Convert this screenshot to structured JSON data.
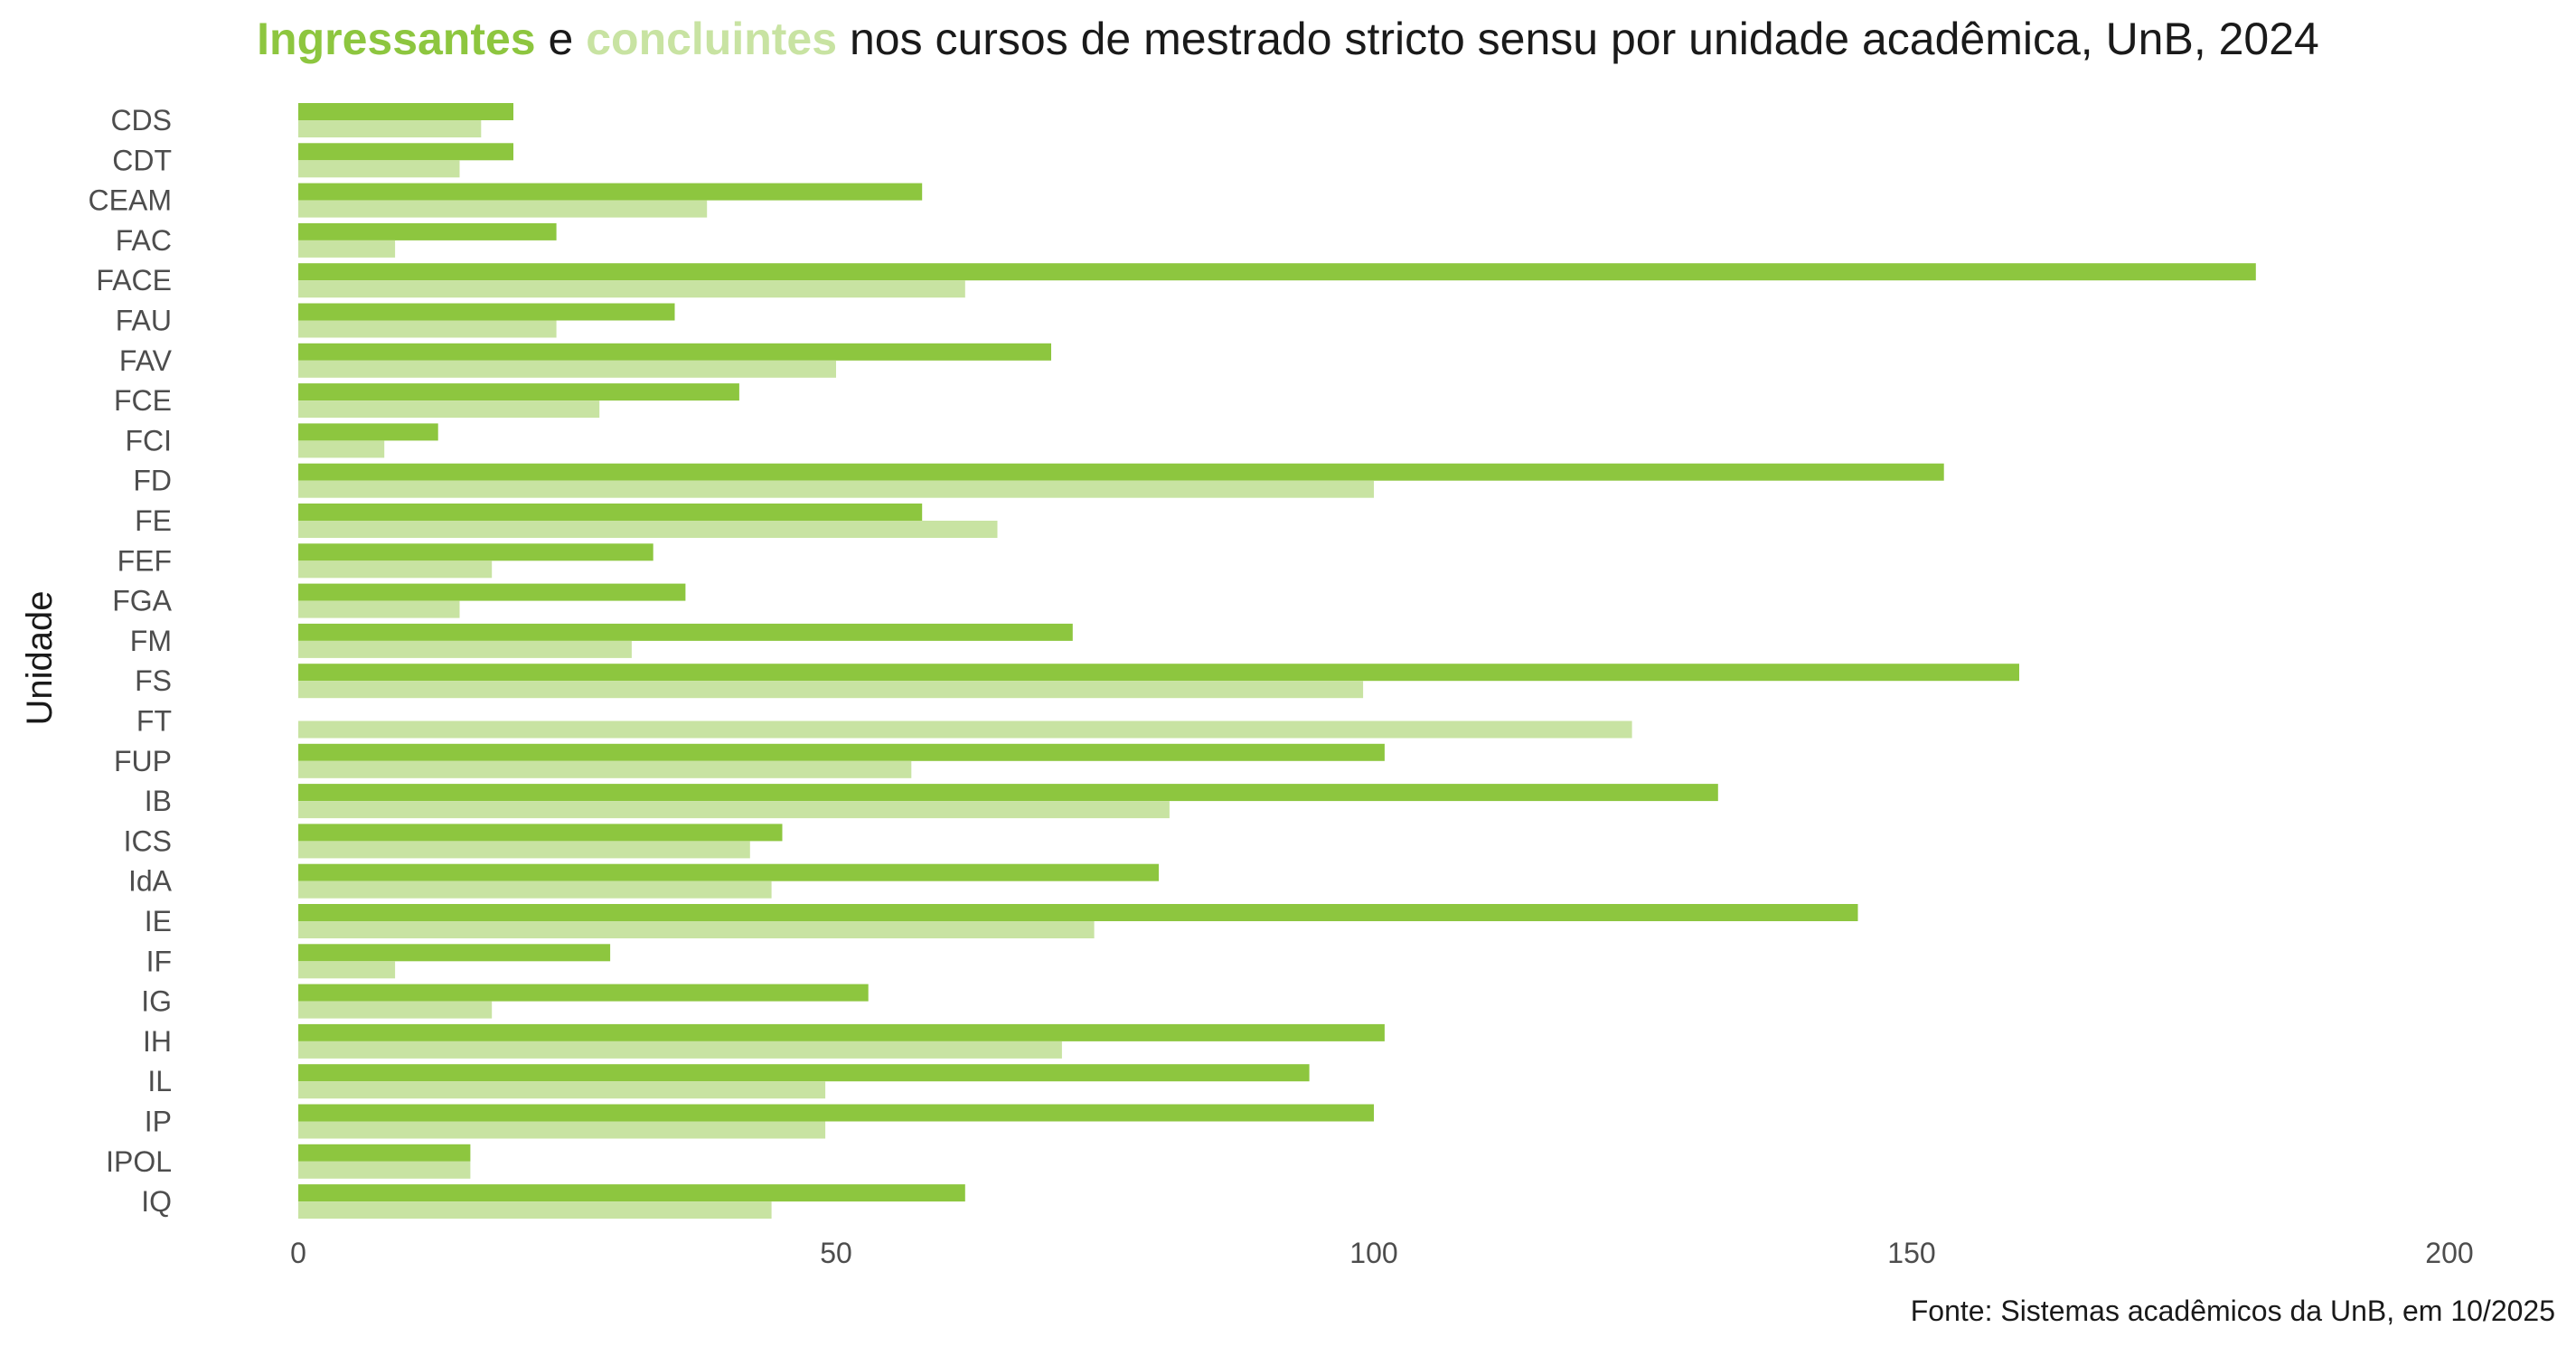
{
  "title": {
    "part1": "Ingressantes",
    "part2": " e ",
    "part3": "concluintes",
    "part4": " nos cursos de mestrado stricto sensu por unidade acadêmica, UnB, 2024"
  },
  "caption": "Fonte: Sistemas acadêmicos da UnB, em 10/2025",
  "colors": {
    "ingressantes": "#8dc63f",
    "concluintes": "#c8e3a2",
    "axis_text": "#4d4d4d",
    "title_text": "#1a1a1a"
  },
  "chart_data": {
    "type": "bar",
    "orientation": "horizontal",
    "ylabel": "Unidade",
    "xlabel": "",
    "xlim": [
      0,
      200
    ],
    "xticks": [
      0,
      50,
      100,
      150,
      200
    ],
    "grid": false,
    "legend": "none (encoded in title colors)",
    "categories": [
      "CDS",
      "CDT",
      "CEAM",
      "FAC",
      "FACE",
      "FAU",
      "FAV",
      "FCE",
      "FCI",
      "FD",
      "FE",
      "FEF",
      "FGA",
      "FM",
      "FS",
      "FT",
      "FUP",
      "IB",
      "ICS",
      "IdA",
      "IE",
      "IF",
      "IG",
      "IH",
      "IL",
      "IP",
      "IPOL",
      "IQ"
    ],
    "series": [
      {
        "name": "Ingressantes",
        "color": "#8dc63f",
        "values": [
          20,
          20,
          58,
          24,
          182,
          35,
          70,
          41,
          13,
          153,
          58,
          33,
          36,
          72,
          160,
          0,
          101,
          132,
          45,
          80,
          145,
          29,
          53,
          101,
          94,
          100,
          16,
          62
        ]
      },
      {
        "name": "concluintes",
        "color": "#c8e3a2",
        "values": [
          17,
          15,
          38,
          9,
          62,
          24,
          50,
          28,
          8,
          100,
          65,
          18,
          15,
          31,
          99,
          124,
          57,
          81,
          42,
          44,
          74,
          9,
          18,
          71,
          49,
          49,
          16,
          44
        ]
      }
    ]
  }
}
